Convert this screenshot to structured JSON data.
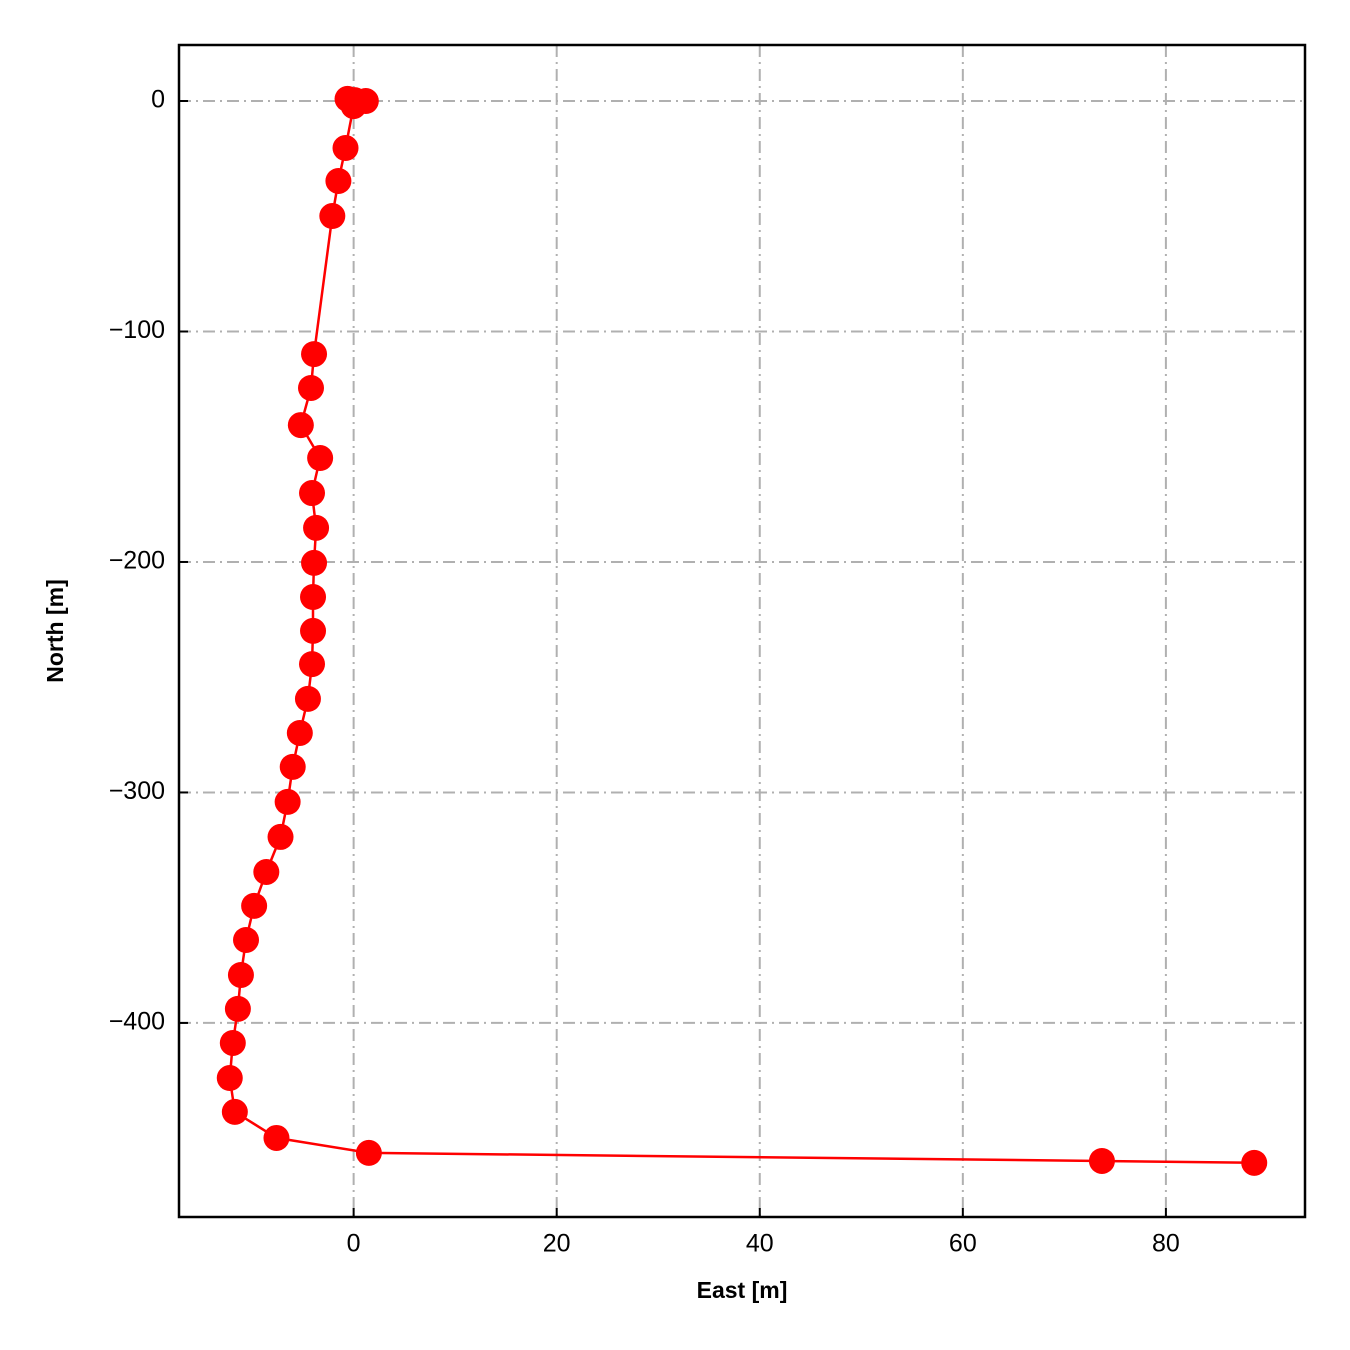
{
  "chart_data": {
    "type": "line",
    "x_label": "East [m]",
    "y_label": "North [m]",
    "xlim": [
      -17.2,
      93.7
    ],
    "ylim": [
      -484.2,
      24.3
    ],
    "xticks": [
      0,
      20,
      40,
      60,
      80
    ],
    "yticks": [
      0,
      {
        "value": -100,
        "label": "−100"
      },
      {
        "value": -200,
        "label": "−200"
      },
      {
        "value": -300,
        "label": "−300"
      },
      {
        "value": -400,
        "label": "−400"
      }
    ],
    "grid": true,
    "series": [
      {
        "color": "#ff0000",
        "x": [
          -0.6,
          0.1,
          1.2,
          0.0,
          -0.8,
          -1.5,
          -2.1,
          -3.9,
          -4.2,
          -5.2,
          -3.3,
          -4.1,
          -3.7,
          -3.9,
          -4.0,
          -4.0,
          -4.1,
          -4.5,
          -5.3,
          -6.0,
          -6.5,
          -7.2,
          -8.6,
          -9.8,
          -10.6,
          -11.1,
          -11.4,
          -11.9,
          -12.2,
          -11.7,
          -7.6,
          1.5,
          73.7,
          88.7
        ],
        "values": [
          0.9,
          0.4,
          0.0,
          -2.2,
          -20.4,
          -34.7,
          -49.9,
          -109.8,
          -124.5,
          -140.6,
          -154.9,
          -170.1,
          -185.2,
          -200.4,
          -215.2,
          -229.9,
          -244.3,
          -259.4,
          -274.2,
          -288.9,
          -304.1,
          -319.3,
          -334.5,
          -349.2,
          -364.0,
          -379.2,
          -393.9,
          -408.7,
          -423.9,
          -438.6,
          -449.9,
          -456.4,
          -459.9,
          -460.7
        ]
      }
    ]
  }
}
